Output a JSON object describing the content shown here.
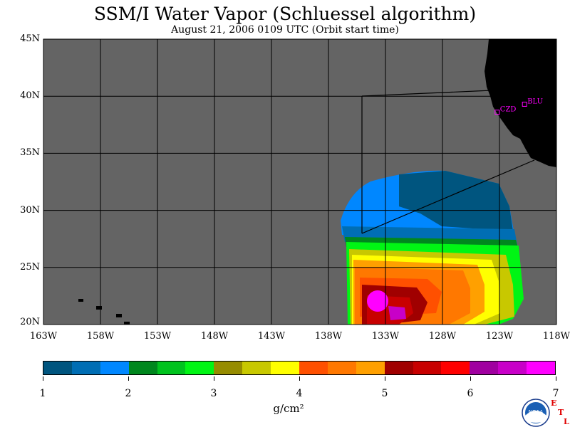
{
  "title": "SSM/I Water Vapor (Schluessel algorithm)",
  "subtitle": "August 21, 2006  0109 UTC  (Orbit start time)",
  "lat_labels": [
    "45N",
    "40N",
    "35N",
    "30N",
    "25N",
    "20N"
  ],
  "lon_labels": [
    "163W",
    "158W",
    "153W",
    "148W",
    "143W",
    "138W",
    "133W",
    "128W",
    "123W",
    "118W"
  ],
  "stations": [
    {
      "code": "CZD",
      "lat": 38.6,
      "lon": -123.2
    },
    {
      "code": "BLU",
      "lat": 39.3,
      "lon": -120.8
    }
  ],
  "colorbar": {
    "ticks": [
      "1",
      "2",
      "3",
      "4",
      "5",
      "6",
      "7"
    ],
    "units": "g/cm²",
    "colors": [
      "#00557f",
      "#006eb4",
      "#0087ff",
      "#00871e",
      "#00c31e",
      "#00f514",
      "#968c00",
      "#c8c800",
      "#ffff00",
      "#ff5000",
      "#ff7800",
      "#ffa000",
      "#a00000",
      "#c80000",
      "#ff0000",
      "#a000a0",
      "#c800c8",
      "#ff00ff"
    ]
  },
  "colors": {
    "background": "#646464",
    "land": "#000000",
    "station": "#ff00ff"
  },
  "logo": {
    "text": "NOAA"
  },
  "corner_letters": [
    "E",
    "T",
    "L"
  ]
}
